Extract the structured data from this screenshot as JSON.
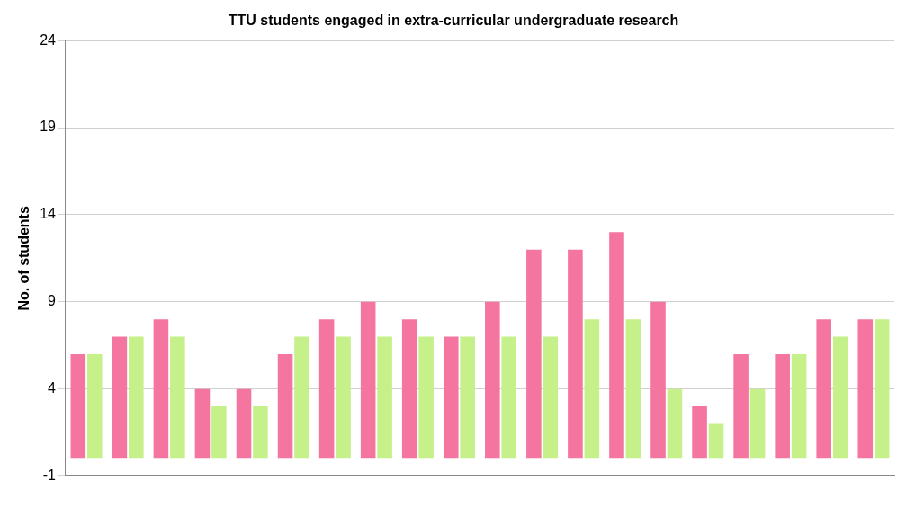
{
  "chart_data": {
    "type": "bar",
    "title": "TTU students engaged in extra-curricular undergraduate research",
    "y_label": "No. of students",
    "categories": [
      null,
      null,
      null,
      null,
      null,
      null,
      null,
      null,
      null,
      null,
      null,
      null,
      null,
      null,
      null,
      null,
      null,
      null,
      null,
      null
    ],
    "series": [
      {
        "color": "#f4759f",
        "values": [
          6,
          7,
          8,
          4,
          4,
          6,
          8,
          9,
          8,
          7,
          9,
          12,
          12,
          13,
          9,
          3,
          6,
          6,
          8,
          8
        ]
      },
      {
        "color": "#c5f08a",
        "values": [
          6,
          7,
          7,
          3,
          3,
          7,
          7,
          7,
          7,
          7,
          7,
          7,
          8,
          8,
          4,
          2,
          4,
          6,
          7,
          8
        ]
      }
    ],
    "ylim": [
      -1,
      24
    ],
    "yticks": [
      -1,
      4,
      9,
      14,
      19,
      24
    ],
    "grid": true
  }
}
